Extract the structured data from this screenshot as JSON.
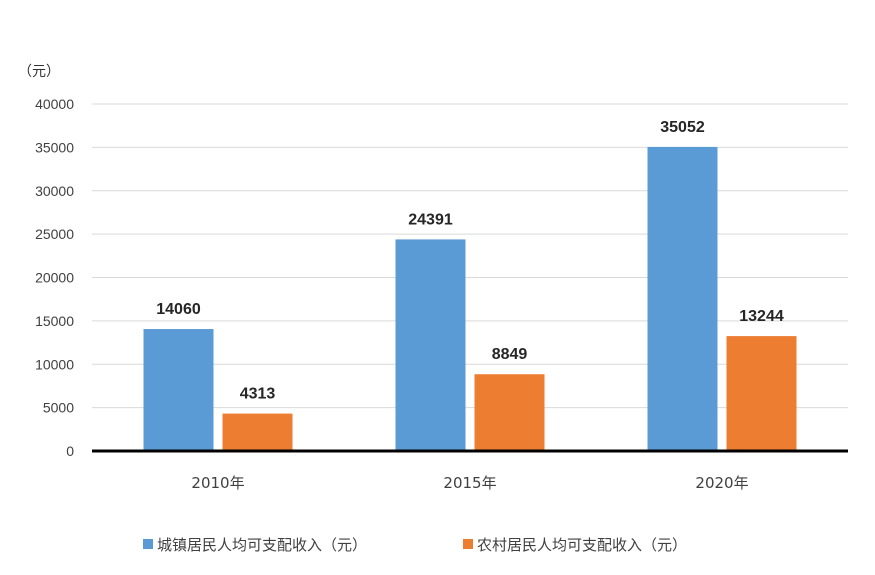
{
  "chart_data": {
    "type": "bar",
    "unit_label": "（元）",
    "categories": [
      "2010年",
      "2015年",
      "2020年"
    ],
    "series": [
      {
        "name": "城镇居民人均可支配收入（元）",
        "values": [
          14060,
          24391,
          35052
        ],
        "color": "#5B9BD5"
      },
      {
        "name": "农村居民人均可支配收入（元）",
        "values": [
          4313,
          8849,
          13244
        ],
        "color": "#ED7D31"
      }
    ],
    "ylim": [
      0,
      40000
    ],
    "yticks": [
      0,
      5000,
      10000,
      15000,
      20000,
      25000,
      30000,
      35000,
      40000
    ],
    "grid": true,
    "legend": "bottom",
    "data_labels": true
  }
}
